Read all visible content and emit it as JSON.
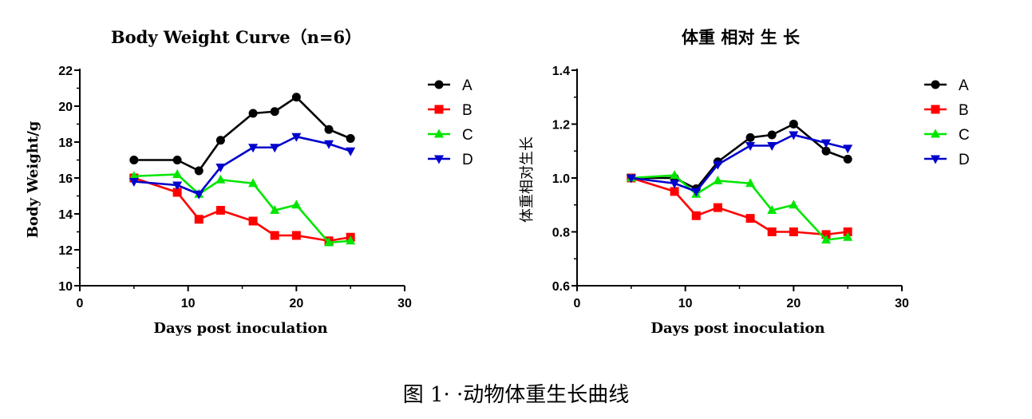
{
  "figure_caption": "图 1· ·动物体重生长曲线",
  "legend_labels": [
    "A",
    "B",
    "C",
    "D"
  ],
  "series_colors": {
    "A": "#000000",
    "B": "#ff0000",
    "C": "#00e600",
    "D": "#0000cc"
  },
  "series_markers": {
    "A": "circle",
    "B": "square",
    "C": "triangle-up",
    "D": "triangle-down"
  },
  "chart_data": [
    {
      "type": "line",
      "title": "Body Weight  Curve（n=6）",
      "xlabel": "Days post inoculation",
      "ylabel": "Body Weight/g",
      "xlim": [
        0,
        30
      ],
      "ylim": [
        10,
        22
      ],
      "xticks": [
        0,
        10,
        20,
        30
      ],
      "yticks": [
        10,
        12,
        14,
        16,
        18,
        20,
        22
      ],
      "legend": "right",
      "grid": false,
      "x": [
        5,
        9,
        11,
        13,
        16,
        18,
        20,
        23,
        25
      ],
      "series": [
        {
          "name": "A",
          "values": [
            17.0,
            17.0,
            16.4,
            18.1,
            19.6,
            19.7,
            20.5,
            18.7,
            18.2
          ]
        },
        {
          "name": "B",
          "values": [
            16.0,
            15.2,
            13.7,
            14.2,
            13.6,
            12.8,
            12.8,
            12.5,
            12.7
          ]
        },
        {
          "name": "C",
          "values": [
            16.1,
            16.2,
            15.1,
            15.9,
            15.7,
            14.2,
            14.5,
            12.4,
            12.5
          ]
        },
        {
          "name": "D",
          "values": [
            15.8,
            15.6,
            15.1,
            16.6,
            17.7,
            17.7,
            18.3,
            17.9,
            17.5
          ]
        }
      ]
    },
    {
      "type": "line",
      "title": "体重  相对  生  长",
      "xlabel": "Days post inoculation",
      "ylabel": "体重相对生长",
      "xlim": [
        0,
        30
      ],
      "ylim": [
        0.6,
        1.4
      ],
      "xticks": [
        0,
        10,
        20,
        30
      ],
      "yticks": [
        0.6,
        0.8,
        1.0,
        1.2,
        1.4
      ],
      "legend": "right",
      "grid": false,
      "x": [
        5,
        9,
        11,
        13,
        16,
        18,
        20,
        23,
        25
      ],
      "series": [
        {
          "name": "A",
          "values": [
            1.0,
            1.0,
            0.96,
            1.06,
            1.15,
            1.16,
            1.2,
            1.1,
            1.07
          ]
        },
        {
          "name": "B",
          "values": [
            1.0,
            0.95,
            0.86,
            0.89,
            0.85,
            0.8,
            0.8,
            0.79,
            0.8
          ]
        },
        {
          "name": "C",
          "values": [
            1.0,
            1.01,
            0.94,
            0.99,
            0.98,
            0.88,
            0.9,
            0.77,
            0.78
          ]
        },
        {
          "name": "D",
          "values": [
            1.0,
            0.98,
            0.95,
            1.05,
            1.12,
            1.12,
            1.16,
            1.13,
            1.11
          ]
        }
      ]
    }
  ]
}
